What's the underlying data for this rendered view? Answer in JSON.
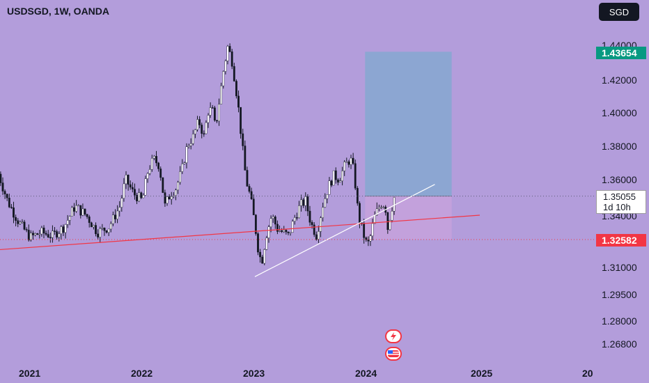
{
  "header": {
    "title": "USDSGD, 1W, OANDA",
    "currency_button": "SGD"
  },
  "price_axis": {
    "labels": [
      "1.44000",
      "1.42000",
      "1.40000",
      "1.38000",
      "1.36000",
      "1.34000",
      "1.31000",
      "1.29500",
      "1.28000",
      "1.26800"
    ]
  },
  "price_badges": {
    "target": "1.43654",
    "current_price": "1.35055",
    "countdown": "1d 10h",
    "stop": "1.32582"
  },
  "time_axis": {
    "labels": [
      "2021",
      "2022",
      "2023",
      "2024",
      "2025",
      "20"
    ]
  },
  "colors": {
    "background": "#b39ddb",
    "bull_candle": "#ffffff",
    "bear_candle": "#131722",
    "support_line": "#f23645",
    "trend_line": "#ffffff",
    "target_zone": "#8ca6d2",
    "stop_zone": "#c3a1dc",
    "target_badge": "#089981",
    "stop_badge": "#f23645"
  },
  "icons": [
    "flash-event-icon",
    "us-flag-event-icon"
  ],
  "chart_data": {
    "type": "candlestick",
    "symbol": "USDSGD",
    "interval": "1W",
    "source": "OANDA",
    "x_range": [
      "2020",
      "2025"
    ],
    "y_axis_ticks": [
      1.44,
      1.42,
      1.4,
      1.38,
      1.36,
      1.34,
      1.31,
      1.295,
      1.28,
      1.268
    ],
    "path": [
      [
        2020.72,
        1.363
      ],
      [
        2020.8,
        1.348
      ],
      [
        2020.9,
        1.336
      ],
      [
        2021.0,
        1.327
      ],
      [
        2021.1,
        1.33
      ],
      [
        2021.2,
        1.328
      ],
      [
        2021.3,
        1.333
      ],
      [
        2021.4,
        1.345
      ],
      [
        2021.5,
        1.34
      ],
      [
        2021.6,
        1.33
      ],
      [
        2021.7,
        1.333
      ],
      [
        2021.8,
        1.345
      ],
      [
        2021.85,
        1.36
      ],
      [
        2021.92,
        1.352
      ],
      [
        2022.0,
        1.348
      ],
      [
        2022.05,
        1.365
      ],
      [
        2022.1,
        1.372
      ],
      [
        2022.15,
        1.368
      ],
      [
        2022.2,
        1.345
      ],
      [
        2022.25,
        1.352
      ],
      [
        2022.3,
        1.355
      ],
      [
        2022.35,
        1.365
      ],
      [
        2022.4,
        1.38
      ],
      [
        2022.45,
        1.385
      ],
      [
        2022.5,
        1.395
      ],
      [
        2022.55,
        1.385
      ],
      [
        2022.58,
        1.4
      ],
      [
        2022.62,
        1.402
      ],
      [
        2022.65,
        1.39
      ],
      [
        2022.68,
        1.405
      ],
      [
        2022.72,
        1.425
      ],
      [
        2022.76,
        1.44
      ],
      [
        2022.8,
        1.43
      ],
      [
        2022.85,
        1.405
      ],
      [
        2022.88,
        1.385
      ],
      [
        2022.92,
        1.36
      ],
      [
        2022.96,
        1.35
      ],
      [
        2023.0,
        1.335
      ],
      [
        2023.03,
        1.32
      ],
      [
        2023.06,
        1.312
      ],
      [
        2023.1,
        1.328
      ],
      [
        2023.15,
        1.34
      ],
      [
        2023.2,
        1.332
      ],
      [
        2023.3,
        1.328
      ],
      [
        2023.35,
        1.338
      ],
      [
        2023.4,
        1.345
      ],
      [
        2023.45,
        1.348
      ],
      [
        2023.5,
        1.335
      ],
      [
        2023.55,
        1.328
      ],
      [
        2023.6,
        1.345
      ],
      [
        2023.65,
        1.355
      ],
      [
        2023.7,
        1.362
      ],
      [
        2023.75,
        1.36
      ],
      [
        2023.8,
        1.368
      ],
      [
        2023.85,
        1.372
      ],
      [
        2023.88,
        1.365
      ],
      [
        2023.92,
        1.34
      ],
      [
        2023.96,
        1.33
      ],
      [
        2024.0,
        1.322
      ],
      [
        2024.03,
        1.328
      ],
      [
        2024.06,
        1.338
      ],
      [
        2024.1,
        1.344
      ],
      [
        2024.13,
        1.347
      ],
      [
        2024.16,
        1.345
      ],
      [
        2024.18,
        1.332
      ],
      [
        2024.21,
        1.342
      ],
      [
        2024.24,
        1.35
      ]
    ],
    "current_price": 1.35055,
    "horizontal_lines": [
      {
        "price": 1.32582
      }
    ],
    "trend_lines": [
      {
        "from": [
          2020.0,
          1.3165
        ],
        "to": [
          2025.0,
          1.34
        ]
      },
      {
        "from": [
          2023.0,
          1.3045
        ],
        "to": [
          2024.6,
          1.357
        ]
      }
    ],
    "position": {
      "entry": 1.35055,
      "target": 1.43654,
      "stop": 1.32582,
      "start": 2023.98,
      "end": 2024.75
    }
  }
}
